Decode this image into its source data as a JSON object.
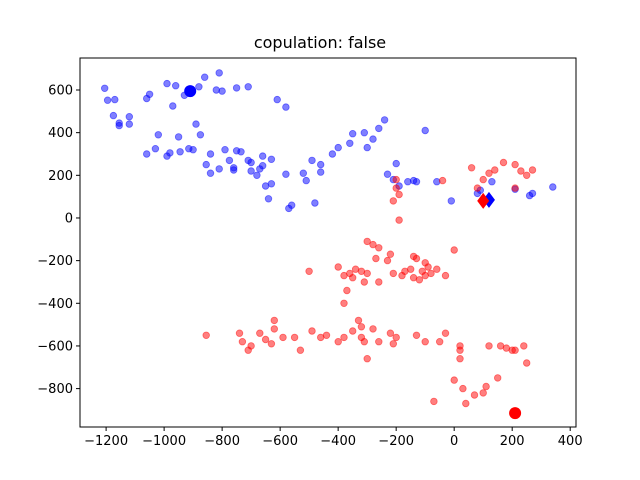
{
  "chart_data": {
    "type": "scatter",
    "title": "copulation: false",
    "xlabel": "",
    "ylabel": "",
    "xlim": [
      -1290,
      420
    ],
    "ylim": [
      -980,
      750
    ],
    "xticks": [
      -1200,
      -1000,
      -800,
      -600,
      -400,
      -200,
      0,
      200,
      400
    ],
    "yticks": [
      -800,
      -600,
      -400,
      -200,
      0,
      200,
      400,
      600
    ],
    "grid": false,
    "series": [
      {
        "color": "#0000ff",
        "alpha": 0.5,
        "points": [
          [
            -1205,
            608
          ],
          [
            -1195,
            552
          ],
          [
            -1170,
            555
          ],
          [
            -1175,
            480
          ],
          [
            -1155,
            445
          ],
          [
            -1155,
            433
          ],
          [
            -1120,
            475
          ],
          [
            -1120,
            440
          ],
          [
            -1060,
            560
          ],
          [
            -1050,
            580
          ],
          [
            -1060,
            300
          ],
          [
            -1030,
            325
          ],
          [
            -1020,
            390
          ],
          [
            -990,
            630
          ],
          [
            -990,
            290
          ],
          [
            -980,
            305
          ],
          [
            -970,
            525
          ],
          [
            -960,
            620
          ],
          [
            -950,
            380
          ],
          [
            -945,
            310
          ],
          [
            -930,
            575
          ],
          [
            -915,
            325
          ],
          [
            -900,
            320
          ],
          [
            -890,
            440
          ],
          [
            -880,
            615
          ],
          [
            -875,
            390
          ],
          [
            -860,
            660
          ],
          [
            -855,
            250
          ],
          [
            -840,
            300
          ],
          [
            -840,
            210
          ],
          [
            -820,
            600
          ],
          [
            -810,
            680
          ],
          [
            -810,
            230
          ],
          [
            -800,
            595
          ],
          [
            -790,
            320
          ],
          [
            -775,
            270
          ],
          [
            -760,
            225
          ],
          [
            -760,
            235
          ],
          [
            -750,
            610
          ],
          [
            -750,
            315
          ],
          [
            -735,
            310
          ],
          [
            -710,
            615
          ],
          [
            -710,
            270
          ],
          [
            -700,
            220
          ],
          [
            -700,
            260
          ],
          [
            -680,
            200
          ],
          [
            -670,
            230
          ],
          [
            -660,
            245
          ],
          [
            -660,
            290
          ],
          [
            -650,
            150
          ],
          [
            -630,
            275
          ],
          [
            -640,
            90
          ],
          [
            -630,
            160
          ],
          [
            -610,
            555
          ],
          [
            -580,
            520
          ],
          [
            -580,
            205
          ],
          [
            -570,
            45
          ],
          [
            -560,
            60
          ],
          [
            -520,
            210
          ],
          [
            -510,
            175
          ],
          [
            -490,
            270
          ],
          [
            -480,
            70
          ],
          [
            -460,
            250
          ],
          [
            -460,
            215
          ],
          [
            -420,
            300
          ],
          [
            -400,
            330
          ],
          [
            -360,
            350
          ],
          [
            -350,
            395
          ],
          [
            -310,
            400
          ],
          [
            -300,
            330
          ],
          [
            -280,
            370
          ],
          [
            -260,
            420
          ],
          [
            -240,
            460
          ],
          [
            -230,
            205
          ],
          [
            -200,
            255
          ],
          [
            -210,
            180
          ],
          [
            -190,
            150
          ],
          [
            -160,
            170
          ],
          [
            -140,
            175
          ],
          [
            -130,
            170
          ],
          [
            -100,
            410
          ],
          [
            -60,
            170
          ],
          [
            -10,
            80
          ],
          [
            80,
            115
          ],
          [
            90,
            130
          ],
          [
            130,
            170
          ],
          [
            210,
            135
          ],
          [
            260,
            105
          ],
          [
            270,
            115
          ],
          [
            340,
            145
          ]
        ]
      },
      {
        "color": "#ff0000",
        "alpha": 0.5,
        "points": [
          [
            -200,
            180
          ],
          [
            -200,
            140
          ],
          [
            -190,
            110
          ],
          [
            -210,
            80
          ],
          [
            -190,
            -10
          ],
          [
            -300,
            -110
          ],
          [
            -280,
            -125
          ],
          [
            -260,
            -140
          ],
          [
            -230,
            -200
          ],
          [
            -220,
            -170
          ],
          [
            -180,
            -270
          ],
          [
            -150,
            -240
          ],
          [
            -140,
            -180
          ],
          [
            -130,
            -190
          ],
          [
            -100,
            -210
          ],
          [
            -110,
            -250
          ],
          [
            -90,
            -230
          ],
          [
            -80,
            -260
          ],
          [
            -120,
            -290
          ],
          [
            -100,
            -270
          ],
          [
            -60,
            -240
          ],
          [
            -30,
            -270
          ],
          [
            0,
            -150
          ],
          [
            -270,
            -190
          ],
          [
            -300,
            -260
          ],
          [
            -310,
            -300
          ],
          [
            -260,
            -300
          ],
          [
            -210,
            -260
          ],
          [
            -170,
            -250
          ],
          [
            -140,
            -280
          ],
          [
            -500,
            -250
          ],
          [
            -400,
            -230
          ],
          [
            -380,
            -270
          ],
          [
            -360,
            -260
          ],
          [
            -350,
            -280
          ],
          [
            -340,
            -240
          ],
          [
            -320,
            -250
          ],
          [
            -370,
            -340
          ],
          [
            -380,
            -400
          ],
          [
            -330,
            -480
          ],
          [
            -320,
            -510
          ],
          [
            -280,
            -520
          ],
          [
            -260,
            -580
          ],
          [
            -310,
            -580
          ],
          [
            -300,
            -660
          ],
          [
            -220,
            -540
          ],
          [
            -200,
            -560
          ],
          [
            -130,
            -550
          ],
          [
            -100,
            -580
          ],
          [
            -50,
            -580
          ],
          [
            -30,
            -540
          ],
          [
            20,
            -600
          ],
          [
            20,
            -620
          ],
          [
            20,
            -660
          ],
          [
            -855,
            -550
          ],
          [
            -740,
            -540
          ],
          [
            -730,
            -580
          ],
          [
            -710,
            -620
          ],
          [
            -700,
            -600
          ],
          [
            -670,
            -540
          ],
          [
            -650,
            -570
          ],
          [
            -630,
            -590
          ],
          [
            -620,
            -520
          ],
          [
            -620,
            -480
          ],
          [
            -590,
            -560
          ],
          [
            -550,
            -560
          ],
          [
            -530,
            -620
          ],
          [
            -490,
            -530
          ],
          [
            -460,
            -560
          ],
          [
            -440,
            -550
          ],
          [
            -400,
            -580
          ],
          [
            -380,
            -560
          ],
          [
            -350,
            -530
          ],
          [
            -320,
            -560
          ],
          [
            -210,
            -590
          ],
          [
            -70,
            -860
          ],
          [
            0,
            -760
          ],
          [
            30,
            -800
          ],
          [
            40,
            -870
          ],
          [
            70,
            -830
          ],
          [
            100,
            -820
          ],
          [
            110,
            -790
          ],
          [
            120,
            -600
          ],
          [
            150,
            -750
          ],
          [
            160,
            -600
          ],
          [
            180,
            -610
          ],
          [
            200,
            -620
          ],
          [
            210,
            -620
          ],
          [
            240,
            -600
          ],
          [
            250,
            -680
          ],
          [
            60,
            235
          ],
          [
            80,
            140
          ],
          [
            100,
            180
          ],
          [
            120,
            210
          ],
          [
            140,
            225
          ],
          [
            170,
            260
          ],
          [
            210,
            250
          ],
          [
            230,
            220
          ],
          [
            250,
            200
          ],
          [
            270,
            225
          ],
          [
            210,
            140
          ],
          [
            -40,
            175
          ]
        ]
      }
    ],
    "markers": [
      {
        "shape": "circle",
        "color": "#0000ff",
        "x": -910,
        "y": 595
      },
      {
        "shape": "diamond",
        "color": "#0000ff",
        "x": 120,
        "y": 85
      },
      {
        "shape": "diamond",
        "color": "#ff0000",
        "x": 100,
        "y": 80
      },
      {
        "shape": "circle",
        "color": "#ff0000",
        "x": 210,
        "y": -915
      }
    ]
  }
}
